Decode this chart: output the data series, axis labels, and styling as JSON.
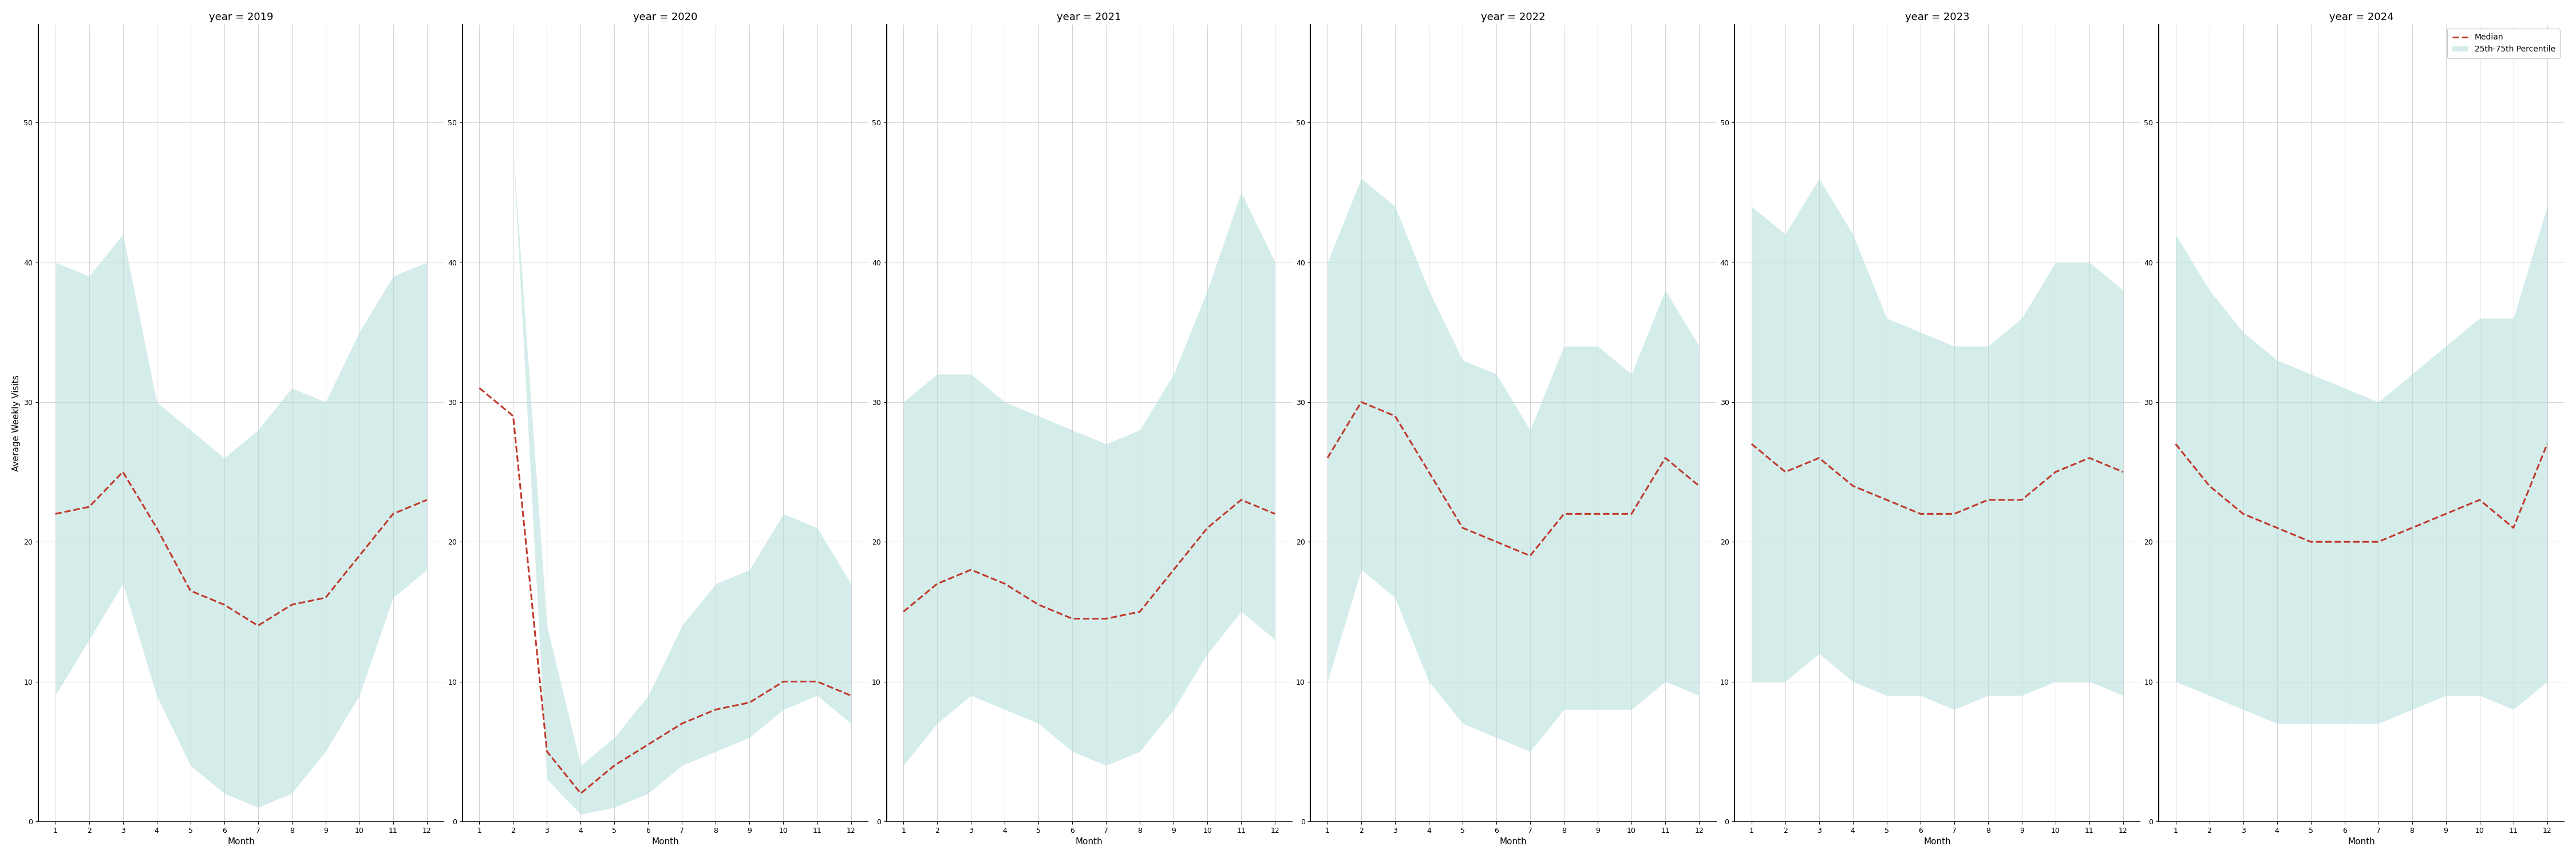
{
  "years": [
    2019,
    2020,
    2021,
    2022,
    2023,
    2024
  ],
  "months": [
    1,
    2,
    3,
    4,
    5,
    6,
    7,
    8,
    9,
    10,
    11,
    12
  ],
  "median": {
    "2019": [
      22,
      22.5,
      25,
      21,
      16.5,
      15.5,
      14,
      15.5,
      16,
      19,
      22,
      23
    ],
    "2020": [
      31,
      29,
      5,
      2,
      4,
      5.5,
      7,
      8,
      8.5,
      10,
      10,
      9
    ],
    "2021": [
      15,
      17,
      18,
      17,
      15.5,
      14.5,
      14.5,
      15,
      18,
      21,
      23,
      22
    ],
    "2022": [
      26,
      30,
      29,
      25,
      21,
      20,
      19,
      22,
      22,
      22,
      26,
      24
    ],
    "2023": [
      27,
      25,
      26,
      24,
      23,
      22,
      22,
      23,
      23,
      25,
      26,
      25
    ],
    "2024": [
      27,
      24,
      22,
      21,
      20,
      20,
      20,
      21,
      22,
      23,
      21,
      27
    ]
  },
  "q25": {
    "2019": [
      9,
      13,
      17,
      9,
      4,
      2,
      1,
      2,
      5,
      9,
      16,
      18
    ],
    "2020": [
      55,
      48,
      3,
      0.5,
      1,
      2,
      4,
      5,
      6,
      8,
      9,
      7
    ],
    "2021": [
      4,
      7,
      9,
      8,
      7,
      5,
      4,
      5,
      8,
      12,
      15,
      13
    ],
    "2022": [
      10,
      18,
      16,
      10,
      7,
      6,
      5,
      8,
      8,
      8,
      10,
      9
    ],
    "2023": [
      10,
      10,
      12,
      10,
      9,
      9,
      8,
      9,
      9,
      10,
      10,
      9
    ],
    "2024": [
      10,
      9,
      8,
      7,
      7,
      7,
      7,
      8,
      9,
      9,
      8,
      10
    ]
  },
  "q75": {
    "2019": [
      40,
      39,
      42,
      30,
      28,
      26,
      28,
      31,
      30,
      35,
      39,
      40
    ],
    "2020": [
      55,
      48,
      14,
      4,
      6,
      9,
      14,
      17,
      18,
      22,
      21,
      17
    ],
    "2021": [
      30,
      32,
      32,
      30,
      29,
      28,
      27,
      28,
      32,
      38,
      45,
      40
    ],
    "2022": [
      40,
      46,
      44,
      38,
      33,
      32,
      28,
      34,
      34,
      32,
      38,
      34
    ],
    "2023": [
      44,
      42,
      46,
      42,
      36,
      35,
      34,
      34,
      36,
      40,
      40,
      38
    ],
    "2024": [
      42,
      38,
      35,
      33,
      32,
      31,
      30,
      32,
      34,
      36,
      36,
      44
    ]
  },
  "ylim": [
    0,
    57
  ],
  "yticks": [
    0,
    10,
    20,
    30,
    40,
    50
  ],
  "fill_color": "#b2dfdb",
  "fill_alpha": 0.55,
  "line_color": "#c0392b",
  "line_style": "--",
  "line_width": 2.2,
  "ylabel": "Average Weekly Visits",
  "xlabel": "Month",
  "title_prefix": "year = ",
  "background_color": "#ffffff",
  "grid_color": "#cccccc",
  "legend_labels": [
    "Median",
    "25th-75th Percentile"
  ]
}
